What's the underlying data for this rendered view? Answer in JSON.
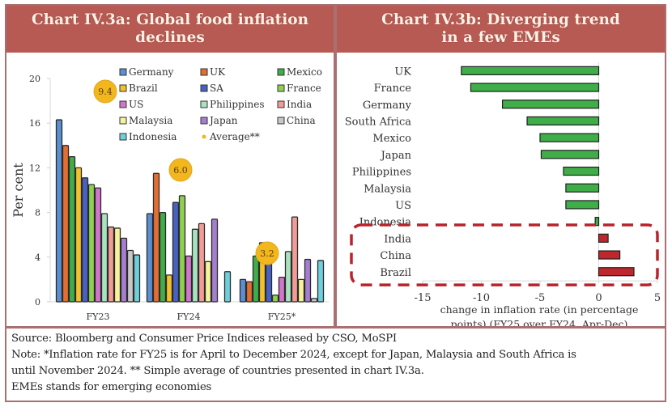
{
  "left_panel": {
    "title_line1": "Chart IV.3a: Global food inflation",
    "title_line2": "declines"
  },
  "right_panel": {
    "title_line1": "Chart IV.3b: Diverging trend",
    "title_line2": "in a few EMEs"
  },
  "footer": {
    "source": "Source: Bloomberg and Consumer Price Indices released by CSO, MoSPI",
    "note_line1": "Note: *Inflation rate for FY25 is for April to December 2024, except for Japan, Malaysia and South Africa is",
    "note_line2": "until November 2024. ** Simple average of countries presented in chart IV.3a.",
    "emes": "EMEs stands for emerging economies"
  },
  "colors": {
    "header_bg": "#b75a53",
    "header_text": "#fdf2e6",
    "border": "#a97072",
    "negative_bar": "#3fae49",
    "positive_bar": "#c0272d",
    "highlight_dash": "#b8242c",
    "average_bubble": "#f3b71e"
  },
  "chart_data": [
    {
      "type": "bar",
      "title": "Chart IV.3a: Global food inflation declines",
      "xlabel": "",
      "ylabel": "Per cent",
      "ylim": [
        0,
        20
      ],
      "yticks": [
        0,
        4,
        8,
        12,
        16,
        20
      ],
      "grid": false,
      "legend_position": "top-right",
      "categories": [
        "FY23",
        "FY24",
        "FY25*"
      ],
      "series": [
        {
          "name": "Germany",
          "color": "#5b8fd1",
          "values": [
            16.3,
            7.9,
            2.0
          ]
        },
        {
          "name": "UK",
          "color": "#e46e32",
          "values": [
            14.0,
            11.5,
            1.8
          ]
        },
        {
          "name": "Mexico",
          "color": "#3fae49",
          "values": [
            13.0,
            8.0,
            4.1
          ]
        },
        {
          "name": "Brazil",
          "color": "#f2c12e",
          "values": [
            12.0,
            2.4,
            5.3
          ]
        },
        {
          "name": "SA",
          "color": "#4862c3",
          "values": [
            11.1,
            8.9,
            4.2
          ]
        },
        {
          "name": "France",
          "color": "#8ed150",
          "values": [
            10.5,
            9.5,
            0.6
          ]
        },
        {
          "name": "US",
          "color": "#d276cc",
          "values": [
            10.2,
            4.1,
            2.2
          ]
        },
        {
          "name": "Philippines",
          "color": "#a8e3c0",
          "values": [
            7.9,
            6.5,
            4.5
          ]
        },
        {
          "name": "India",
          "color": "#f29c97",
          "values": [
            6.7,
            7.0,
            7.6
          ]
        },
        {
          "name": "Malaysia",
          "color": "#f6f39a",
          "values": [
            6.6,
            3.6,
            2.0
          ]
        },
        {
          "name": "Japan",
          "color": "#a67ed0",
          "values": [
            5.7,
            7.4,
            3.8
          ]
        },
        {
          "name": "China",
          "color": "#c8c8c8",
          "values": [
            4.6,
            0.0,
            0.3
          ]
        },
        {
          "name": "Indonesia",
          "color": "#6fd0dc",
          "values": [
            4.2,
            2.7,
            3.7
          ]
        }
      ],
      "average": {
        "name": "Average**",
        "values": [
          9.4,
          6.0,
          3.2
        ],
        "labels": [
          "9.4",
          "6.0",
          "3.2"
        ]
      }
    },
    {
      "type": "bar",
      "orientation": "horizontal",
      "title": "Chart IV.3b: Diverging trend in a few EMEs",
      "xlabel": "change in inflation rate  (in percentage points) (FY25 over FY24, Apr-Dec)",
      "xlabel_line1": "change in inflation rate  (in percentage",
      "xlabel_line2": "points) (FY25 over FY24, Apr-Dec)",
      "ylabel": "",
      "xlim": [
        -15,
        5
      ],
      "xticks": [
        -15,
        -10,
        -5,
        0,
        5
      ],
      "grid": false,
      "categories": [
        "UK",
        "France",
        "Germany",
        "South Africa",
        "Mexico",
        "Japan",
        "Philippines",
        "Malaysia",
        "US",
        "Indonesia",
        "India",
        "China",
        "Brazil"
      ],
      "values": [
        -11.7,
        -10.9,
        -8.2,
        -6.1,
        -5.0,
        -4.9,
        -3.0,
        -2.8,
        -2.8,
        -0.3,
        0.8,
        1.8,
        3.0
      ],
      "highlighted": [
        "India",
        "China",
        "Brazil"
      ]
    }
  ]
}
